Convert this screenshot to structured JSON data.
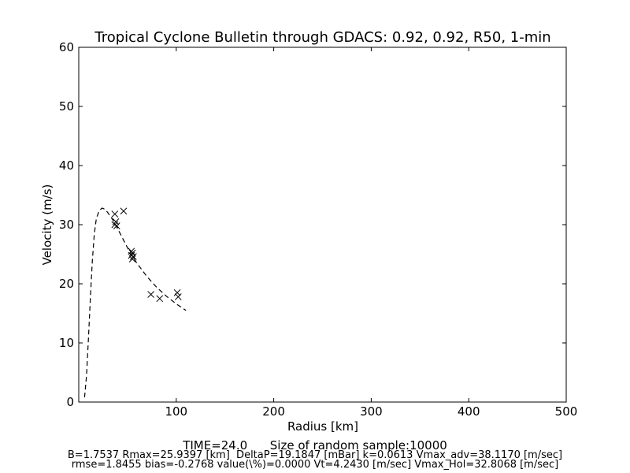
{
  "chart_data": {
    "type": "scatter",
    "title": "Tropical Cyclone Bulletin through GDACS: 0.92, 0.92, R50, 1-min",
    "xlabel": "Radius [km]",
    "ylabel": "Velocity (m/s)",
    "xlim": [
      0,
      500
    ],
    "ylim": [
      0,
      60
    ],
    "xticks": [
      100,
      200,
      300,
      400,
      500
    ],
    "yticks": [
      0,
      10,
      20,
      30,
      40,
      50,
      60
    ],
    "grid": false,
    "series": [
      {
        "style": "x-markers",
        "points": [
          [
            37,
            31.8
          ],
          [
            37,
            30.0
          ],
          [
            38,
            30.5
          ],
          [
            39,
            29.8
          ],
          [
            46,
            32.3
          ],
          [
            54,
            25.5
          ],
          [
            54,
            24.8
          ],
          [
            55,
            24.2
          ],
          [
            55,
            25.2
          ],
          [
            56,
            24.6
          ],
          [
            74,
            18.2
          ],
          [
            83,
            17.5
          ],
          [
            101,
            18.5
          ],
          [
            102,
            17.8
          ]
        ]
      },
      {
        "style": "dashed-line",
        "points": [
          [
            6,
            0.8
          ],
          [
            8,
            4.5
          ],
          [
            10,
            11
          ],
          [
            12,
            18
          ],
          [
            14,
            24
          ],
          [
            16,
            28.5
          ],
          [
            18,
            31
          ],
          [
            21,
            32.4
          ],
          [
            24,
            32.8
          ],
          [
            27,
            32.6
          ],
          [
            30,
            32
          ],
          [
            35,
            30.8
          ],
          [
            40,
            29.3
          ],
          [
            45,
            27.7
          ],
          [
            50,
            26.1
          ],
          [
            55,
            24.7
          ],
          [
            60,
            23.4
          ],
          [
            70,
            21.2
          ],
          [
            80,
            19.4
          ],
          [
            90,
            17.9
          ],
          [
            100,
            16.6
          ],
          [
            110,
            15.5
          ]
        ]
      }
    ]
  },
  "footer": {
    "time_line": "TIME=24.0      Size of random sample:10000",
    "params_line": "B=1.7537 Rmax=25.9397 [km]  DeltaP=19.1847 [mBar] k=0.0613 Vmax_adv=38.1170 [m/sec]",
    "stats_line": "rmse=1.8455 bias=-0.2768 value(\\%)=0.0000 Vt=4.2430 [m/sec] Vmax_Hol=32.8068 [m/sec]"
  }
}
